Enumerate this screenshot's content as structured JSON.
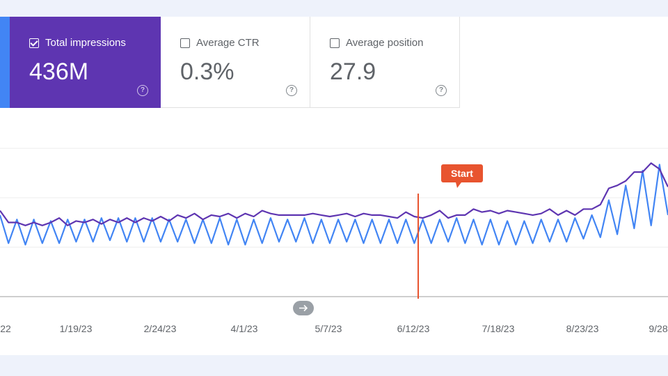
{
  "metrics": [
    {
      "label": "Total impressions",
      "value": "436M",
      "checked": true
    },
    {
      "label": "Average CTR",
      "value": "0.3%",
      "checked": false
    },
    {
      "label": "Average position",
      "value": "27.9",
      "checked": false
    }
  ],
  "help_glyph": "?",
  "colors": {
    "accent": "#5e35b1",
    "impressions_line": "#5e35b1",
    "secondary_line": "#4285f4",
    "marker": "#e8542f",
    "strip": "#4285f4"
  },
  "chart_data": {
    "type": "line",
    "title": "",
    "xlabel": "",
    "ylabel": "",
    "x_ticks": [
      "22",
      "1/19/23",
      "2/24/23",
      "4/1/23",
      "5/7/23",
      "6/12/23",
      "7/18/23",
      "8/23/23",
      "9/28"
    ],
    "series": [
      {
        "color": "#5e35b1",
        "values": [
          0.58,
          0.5,
          0.5,
          0.48,
          0.5,
          0.48,
          0.5,
          0.53,
          0.48,
          0.51,
          0.5,
          0.52,
          0.49,
          0.52,
          0.5,
          0.53,
          0.5,
          0.53,
          0.51,
          0.54,
          0.51,
          0.55,
          0.53,
          0.56,
          0.52,
          0.55,
          0.54,
          0.56,
          0.53,
          0.56,
          0.54,
          0.58,
          0.56,
          0.55,
          0.55,
          0.55,
          0.55,
          0.56,
          0.55,
          0.54,
          0.55,
          0.56,
          0.54,
          0.56,
          0.55,
          0.55,
          0.54,
          0.53,
          0.57,
          0.54,
          0.53,
          0.55,
          0.58,
          0.53,
          0.55,
          0.55,
          0.59,
          0.57,
          0.58,
          0.56,
          0.58,
          0.57,
          0.56,
          0.55,
          0.56,
          0.59,
          0.55,
          0.58,
          0.55,
          0.59,
          0.59,
          0.62,
          0.73,
          0.75,
          0.78,
          0.84,
          0.84,
          0.9,
          0.86,
          0.74
        ]
      },
      {
        "color": "#4285f4",
        "values": [
          0.55,
          0.36,
          0.52,
          0.35,
          0.52,
          0.36,
          0.51,
          0.36,
          0.52,
          0.37,
          0.52,
          0.37,
          0.53,
          0.38,
          0.53,
          0.37,
          0.53,
          0.37,
          0.53,
          0.37,
          0.52,
          0.37,
          0.52,
          0.36,
          0.52,
          0.36,
          0.53,
          0.35,
          0.52,
          0.35,
          0.52,
          0.36,
          0.53,
          0.37,
          0.52,
          0.37,
          0.53,
          0.36,
          0.52,
          0.36,
          0.52,
          0.37,
          0.52,
          0.36,
          0.52,
          0.36,
          0.52,
          0.36,
          0.52,
          0.36,
          0.52,
          0.36,
          0.52,
          0.37,
          0.53,
          0.36,
          0.52,
          0.35,
          0.52,
          0.35,
          0.51,
          0.35,
          0.51,
          0.36,
          0.52,
          0.37,
          0.52,
          0.37,
          0.53,
          0.39,
          0.55,
          0.4,
          0.65,
          0.42,
          0.75,
          0.46,
          0.85,
          0.48,
          0.89,
          0.55
        ]
      }
    ],
    "annotations": [
      {
        "text": "Start",
        "x": "6/12/23"
      }
    ],
    "grid": true,
    "legend": "none"
  }
}
